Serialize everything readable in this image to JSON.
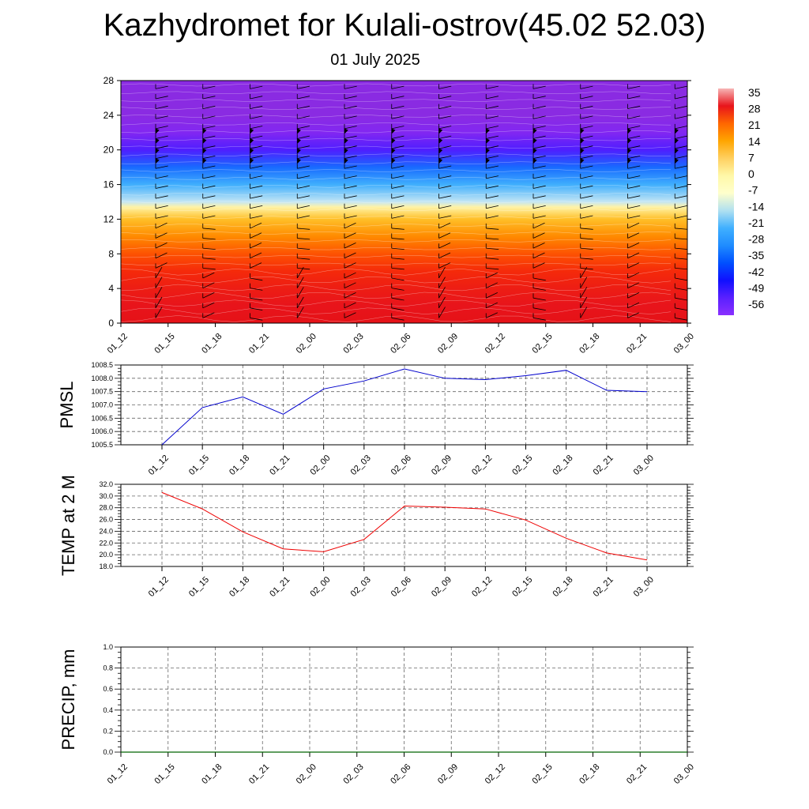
{
  "header": {
    "title": "Kazhydromet for Kulali-ostrov(45.02 52.03)",
    "subtitle": "01 July 2025"
  },
  "chart_data": [
    {
      "type": "heatmap",
      "title": "",
      "xlabel": "",
      "ylabel": "",
      "x_categories": [
        "01_12",
        "01_15",
        "01_18",
        "01_21",
        "02_00",
        "02_03",
        "02_06",
        "02_09",
        "02_12",
        "02_15",
        "02_18",
        "02_21",
        "03_00"
      ],
      "y_ticks": [
        0,
        4,
        8,
        12,
        16,
        20,
        24,
        28
      ],
      "ylim": [
        0,
        28
      ],
      "temperature_bands": [
        {
          "y": 0,
          "value": 30
        },
        {
          "y": 2,
          "value": 26
        },
        {
          "y": 4,
          "value": 24
        },
        {
          "y": 6,
          "value": 21
        },
        {
          "y": 8,
          "value": 16
        },
        {
          "y": 10,
          "value": 9
        },
        {
          "y": 12,
          "value": 1
        },
        {
          "y": 13.4,
          "value": -7
        },
        {
          "y": 14,
          "value": -16
        },
        {
          "y": 16,
          "value": -28
        },
        {
          "y": 18,
          "value": -40
        },
        {
          "y": 20,
          "value": -52
        },
        {
          "y": 22,
          "value": -58
        },
        {
          "y": 24,
          "value": -60
        },
        {
          "y": 28,
          "value": -60
        }
      ],
      "colorbar": {
        "labels": [
          "35",
          "28",
          "21",
          "14",
          "7",
          "0",
          "-7",
          "-14",
          "-21",
          "-28",
          "-35",
          "-42",
          "-49",
          "-56"
        ],
        "colors": [
          "#f7b5b5",
          "#e8141b",
          "#ff6600",
          "#ffa500",
          "#ffd060",
          "#fff8a8",
          "#ffffcc",
          "#b0e0f0",
          "#40b0ff",
          "#1f8cff",
          "#0050ff",
          "#1010ff",
          "#5a20ff",
          "#8a30ff"
        ]
      },
      "wind_barbs": "present"
    },
    {
      "type": "line",
      "title": "",
      "ylabel": "PMSL",
      "x": [
        "01_12",
        "01_15",
        "01_18",
        "01_21",
        "02_00",
        "02_03",
        "02_06",
        "02_09",
        "02_12",
        "02_15",
        "02_18",
        "02_21",
        "03_00"
      ],
      "series": [
        {
          "values": [
            1005.5,
            1006.9,
            1007.3,
            1006.65,
            1007.6,
            1007.9,
            1008.35,
            1008.0,
            1007.95,
            1008.1,
            1008.3,
            1007.55,
            1007.5
          ],
          "color": "#0000cc"
        }
      ],
      "ylim": [
        1005.5,
        1008.5
      ],
      "y_ticks": [
        "1005.5",
        "1006.0",
        "1006.5",
        "1007.0",
        "1007.5",
        "1008.0",
        "1008.5"
      ],
      "grid": true
    },
    {
      "type": "line",
      "title": "",
      "ylabel": "TEMP at 2 M",
      "x": [
        "01_12",
        "01_15",
        "01_18",
        "01_21",
        "02_00",
        "02_03",
        "02_06",
        "02_09",
        "02_12",
        "02_15",
        "02_18",
        "02_21",
        "03_00"
      ],
      "series": [
        {
          "values": [
            30.6,
            27.8,
            23.9,
            21.0,
            20.5,
            22.6,
            28.3,
            28.1,
            27.8,
            25.9,
            22.8,
            20.3,
            19.1
          ],
          "color": "#ee0000"
        }
      ],
      "ylim": [
        18.0,
        32.0
      ],
      "y_ticks": [
        "18.0",
        "20.0",
        "22.0",
        "24.0",
        "26.0",
        "28.0",
        "30.0",
        "32.0"
      ],
      "grid": true
    },
    {
      "type": "line",
      "title": "",
      "ylabel": "PRECIP, mm",
      "x_categories": [
        "01_12",
        "01_15",
        "01_18",
        "01_21",
        "02_00",
        "02_03",
        "02_06",
        "02_09",
        "02_12",
        "02_15",
        "02_18",
        "02_21",
        "03_00"
      ],
      "series": [
        {
          "values": [
            0,
            0,
            0,
            0,
            0,
            0,
            0,
            0,
            0,
            0,
            0,
            0,
            0
          ],
          "color": "#006400"
        }
      ],
      "ylim": [
        0.0,
        1.0
      ],
      "y_ticks": [
        "0.0",
        "0.2",
        "0.4",
        "0.6",
        "0.8",
        "1.0"
      ],
      "grid": true
    }
  ]
}
